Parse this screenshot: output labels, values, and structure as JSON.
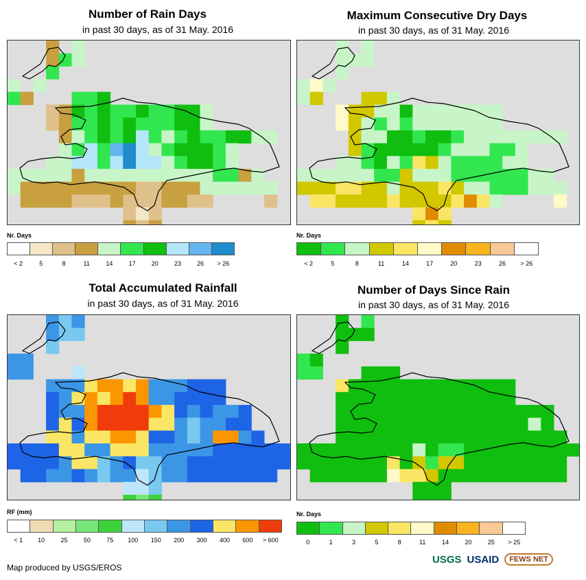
{
  "panels": [
    {
      "title": "Number of Rain Days",
      "subtitle": "in past 30 days, as of 31 May. 2016",
      "legend_title": "Nr. Days",
      "legend_colors": [
        "#ffffff",
        "#f5e6c8",
        "#e0c08a",
        "#c9a040",
        "#c8f5c8",
        "#32e650",
        "#10be10",
        "#b4e6fa",
        "#64b4f0",
        "#1e8ccd"
      ],
      "legend_ticks": [
        "< 2",
        "5",
        "8",
        "11",
        "14",
        "17",
        "20",
        "23",
        "26",
        "> 26"
      ]
    },
    {
      "title": "Maximum Consecutive Dry Days",
      "subtitle": "in past 30 days, as of 31 May. 2016",
      "legend_title": "Nr. Days",
      "legend_colors": [
        "#10be10",
        "#32e650",
        "#c8f5c8",
        "#d2c800",
        "#fae664",
        "#fffac8",
        "#e08c00",
        "#fab41e",
        "#fac896",
        "#ffffff"
      ],
      "legend_ticks": [
        "< 2",
        "5",
        "8",
        "11",
        "14",
        "17",
        "20",
        "23",
        "26",
        "> 26"
      ]
    },
    {
      "title": "Total Accumulated Rainfall",
      "subtitle": "in past 30 days, as of 31 May. 2016",
      "legend_title": "RF (mm)",
      "legend_colors": [
        "#ffffff",
        "#f0dcb4",
        "#b4f0a0",
        "#78e678",
        "#3cd23c",
        "#bee6fa",
        "#78c8f0",
        "#3c96e6",
        "#1e64e6",
        "#fae664",
        "#fa9600",
        "#f03c0a"
      ],
      "legend_ticks": [
        "< 1",
        "10",
        "25",
        "50",
        "75",
        "100",
        "150",
        "200",
        "300",
        "400",
        "600",
        "> 600"
      ]
    },
    {
      "title": "Number of Days Since Rain",
      "subtitle": "in past 30 days, as of 31 May. 2016",
      "legend_title": "Nr. Days",
      "legend_colors": [
        "#10be10",
        "#32e650",
        "#c8f5c8",
        "#d2c800",
        "#fae664",
        "#fffac8",
        "#e08c00",
        "#fab41e",
        "#fac896",
        "#ffffff"
      ],
      "legend_ticks": [
        "0",
        "1",
        "3",
        "5",
        "8",
        "11",
        "14",
        "20",
        "25",
        "> 25"
      ]
    }
  ],
  "credit": "Map produced by USGS/EROS",
  "logos": {
    "usgs": "USGS",
    "usaid": "USAID",
    "fews": "FEWS NET"
  },
  "map_background": "#dedede",
  "outline_color": "#000000"
}
